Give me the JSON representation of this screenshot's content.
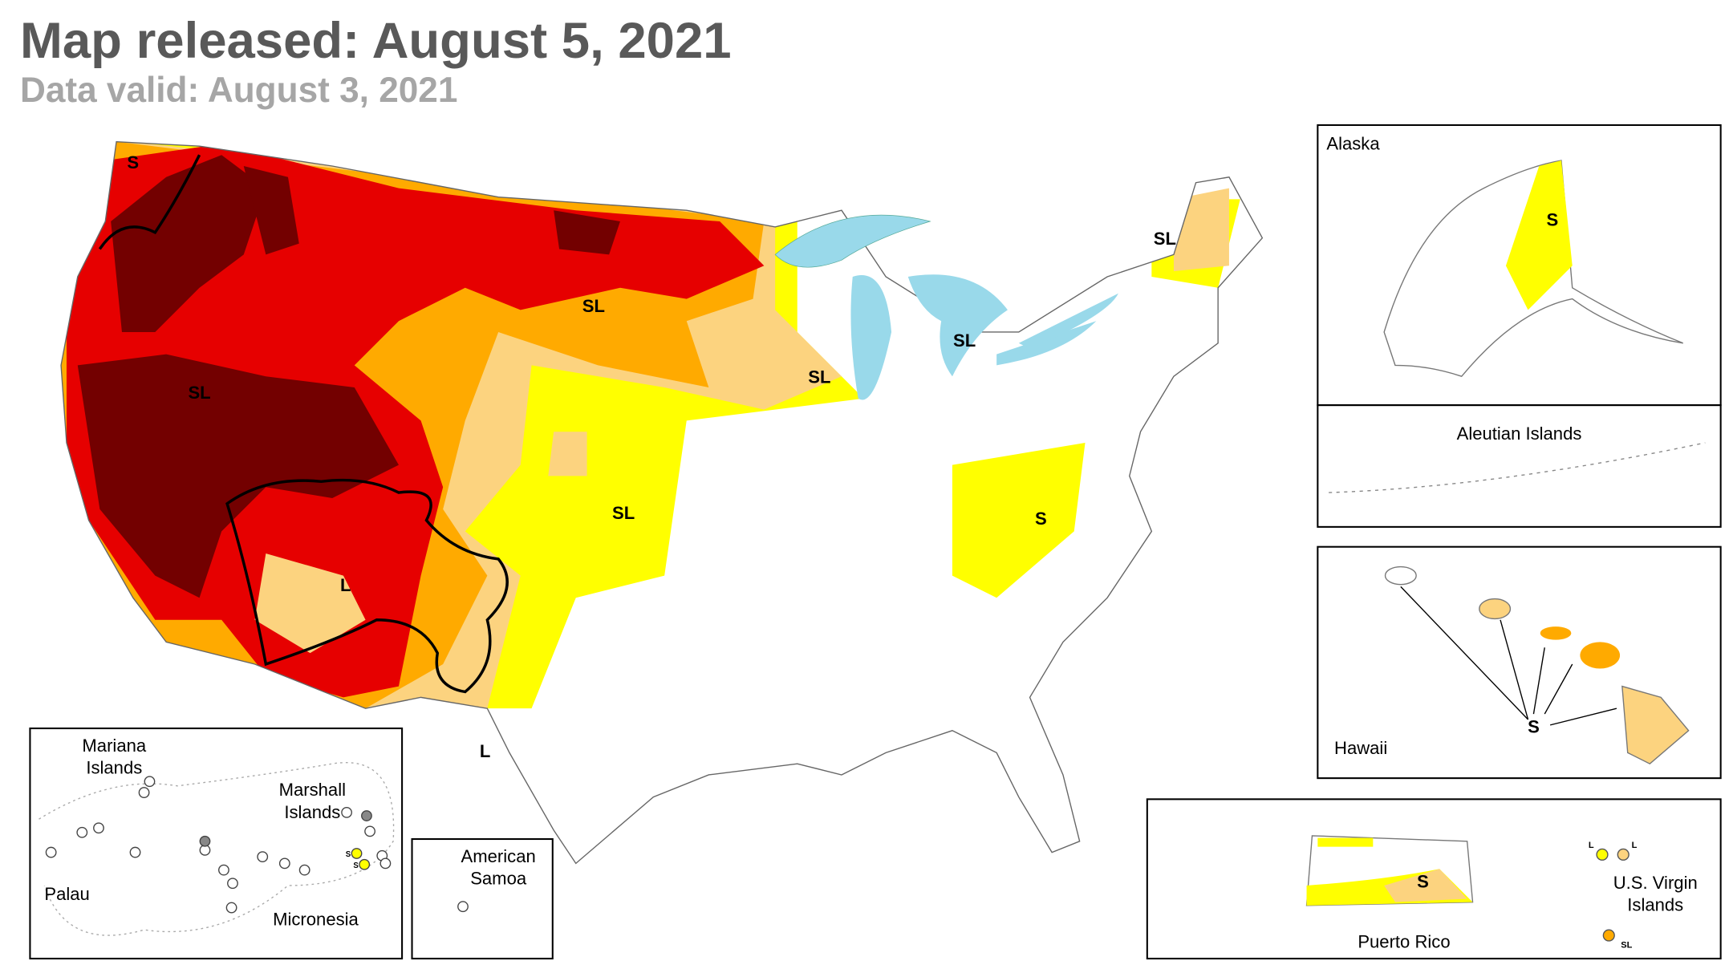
{
  "header": {
    "title": "Map released: August 5, 2021",
    "subtitle": "Data valid: August 3, 2021"
  },
  "map_labels": [
    "S",
    "SL",
    "SL",
    "SL",
    "SL",
    "SL",
    "SL",
    "S",
    "L",
    "L"
  ],
  "insets": {
    "alaska": {
      "title": "Alaska",
      "label": "S"
    },
    "aleutian": {
      "title": "Aleutian Islands"
    },
    "hawaii": {
      "title": "Hawaii",
      "label": "S"
    },
    "puerto_rico": {
      "title": "Puerto Rico",
      "label": "S"
    },
    "virgin_islands": {
      "title": "U.S. Virgin Islands",
      "labels": [
        "L",
        "L",
        "SL"
      ]
    },
    "pacific": {
      "labels": [
        "Mariana Islands",
        "Marshall Islands",
        "Palau",
        "Micronesia"
      ],
      "marks": [
        "S",
        "S"
      ]
    },
    "samoa": {
      "title": "American Samoa"
    }
  }
}
